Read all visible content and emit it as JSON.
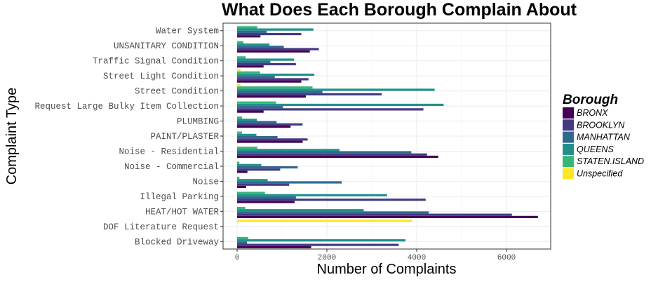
{
  "chart_data": {
    "type": "bar",
    "orientation": "horizontal",
    "title": "What Does Each Borough Complain About",
    "xlabel": "Number of Complaints",
    "ylabel": "Complaint Type",
    "xlim": [
      0,
      7000
    ],
    "xticks": [
      0,
      2000,
      4000,
      6000
    ],
    "xtick_labels": [
      "0",
      "2000",
      "4000",
      "6000"
    ],
    "grid": true,
    "legend": {
      "title": "Borough",
      "position": "right"
    },
    "categories": [
      "Blocked Driveway",
      "DOF Literature Request",
      "HEAT/HOT WATER",
      "Illegal Parking",
      "Noise",
      "Noise - Commercial",
      "Noise - Residential",
      "PAINT/PLASTER",
      "PLUMBING",
      "Request Large Bulky Item Collection",
      "Street Condition",
      "Street Light Condition",
      "Traffic Signal Condition",
      "UNSANITARY CONDITION",
      "Water System"
    ],
    "series": [
      {
        "name": "BRONX",
        "color": "#440154",
        "values": [
          1650,
          0,
          6700,
          1280,
          200,
          230,
          4480,
          1460,
          1190,
          590,
          1530,
          1430,
          590,
          1620,
          520
        ]
      },
      {
        "name": "BROOKLYN",
        "color": "#443A83",
        "values": [
          3600,
          0,
          6120,
          4200,
          1160,
          960,
          4230,
          1570,
          1460,
          4150,
          3220,
          1590,
          1310,
          1820,
          1430
        ]
      },
      {
        "name": "MANHATTAN",
        "color": "#31688E",
        "values": [
          220,
          0,
          4270,
          1310,
          2330,
          1350,
          3880,
          900,
          880,
          1020,
          1900,
          840,
          740,
          1040,
          660
        ]
      },
      {
        "name": "QUEENS",
        "color": "#21908D",
        "values": [
          3750,
          0,
          2820,
          3340,
          680,
          540,
          2280,
          430,
          440,
          4600,
          4400,
          1720,
          1270,
          720,
          1700
        ]
      },
      {
        "name": "STATEN.ISLAND",
        "color": "#35B779",
        "values": [
          250,
          0,
          180,
          620,
          50,
          50,
          450,
          110,
          110,
          870,
          1680,
          510,
          190,
          140,
          450
        ]
      },
      {
        "name": "Unspecified",
        "color": "#FDE725",
        "values": [
          0,
          3900,
          0,
          0,
          0,
          0,
          0,
          0,
          0,
          0,
          80,
          80,
          0,
          0,
          0
        ]
      }
    ]
  }
}
